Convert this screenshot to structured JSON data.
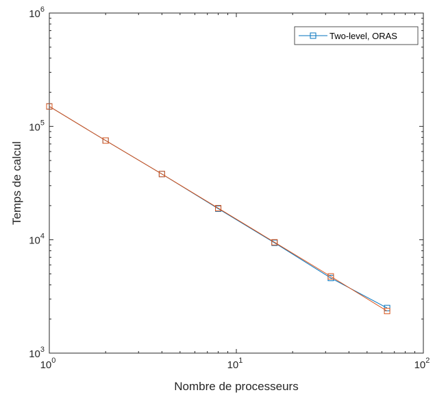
{
  "chart_data": {
    "type": "line",
    "title": "",
    "xlabel": "Nombre de processeurs",
    "ylabel": "Temps de calcul",
    "xscale": "log",
    "yscale": "log",
    "xlim": [
      1,
      100
    ],
    "ylim": [
      1000,
      1000000
    ],
    "grid": false,
    "legend_position": "top-right",
    "x_ticks": [
      {
        "value": 1,
        "base": "10",
        "exp": "0"
      },
      {
        "value": 10,
        "base": "10",
        "exp": "1"
      },
      {
        "value": 100,
        "base": "10",
        "exp": "2"
      }
    ],
    "y_ticks": [
      {
        "value": 1000,
        "base": "10",
        "exp": "3"
      },
      {
        "value": 10000,
        "base": "10",
        "exp": "4"
      },
      {
        "value": 100000,
        "base": "10",
        "exp": "5"
      },
      {
        "value": 1000000,
        "base": "10",
        "exp": "6"
      }
    ],
    "series": [
      {
        "name": "Two-level, ORAS",
        "color": "#0072BD",
        "marker": "square",
        "x": [
          1,
          2,
          4,
          8,
          16,
          32,
          64
        ],
        "y": [
          150000,
          75000,
          38000,
          18800,
          9400,
          4600,
          2500
        ]
      },
      {
        "color": "#D95319",
        "marker": "square",
        "x": [
          1,
          2,
          4,
          8,
          16,
          32,
          64
        ],
        "y": [
          150000,
          75000,
          38000,
          19000,
          9500,
          4750,
          2350
        ]
      }
    ]
  }
}
